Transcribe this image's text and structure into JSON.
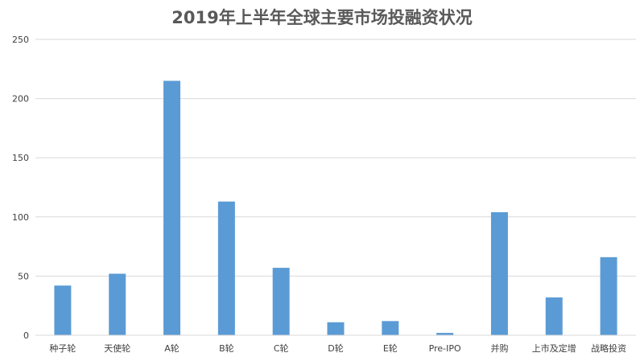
{
  "chart_data": {
    "type": "bar",
    "title": "2019年上半年全球主要市场投融资状况",
    "categories": [
      "种子轮",
      "天使轮",
      "A轮",
      "B轮",
      "C轮",
      "D轮",
      "E轮",
      "Pre-IPO",
      "并购",
      "上市及定增",
      "战略投资"
    ],
    "values": [
      42,
      52,
      215,
      113,
      57,
      11,
      12,
      2,
      104,
      32,
      66
    ],
    "yticks": [
      0,
      50,
      100,
      150,
      200,
      250
    ],
    "ylim": [
      0,
      250
    ],
    "grid": true,
    "bar_color": "#5B9BD5",
    "grid_color": "#D9D9D9"
  }
}
